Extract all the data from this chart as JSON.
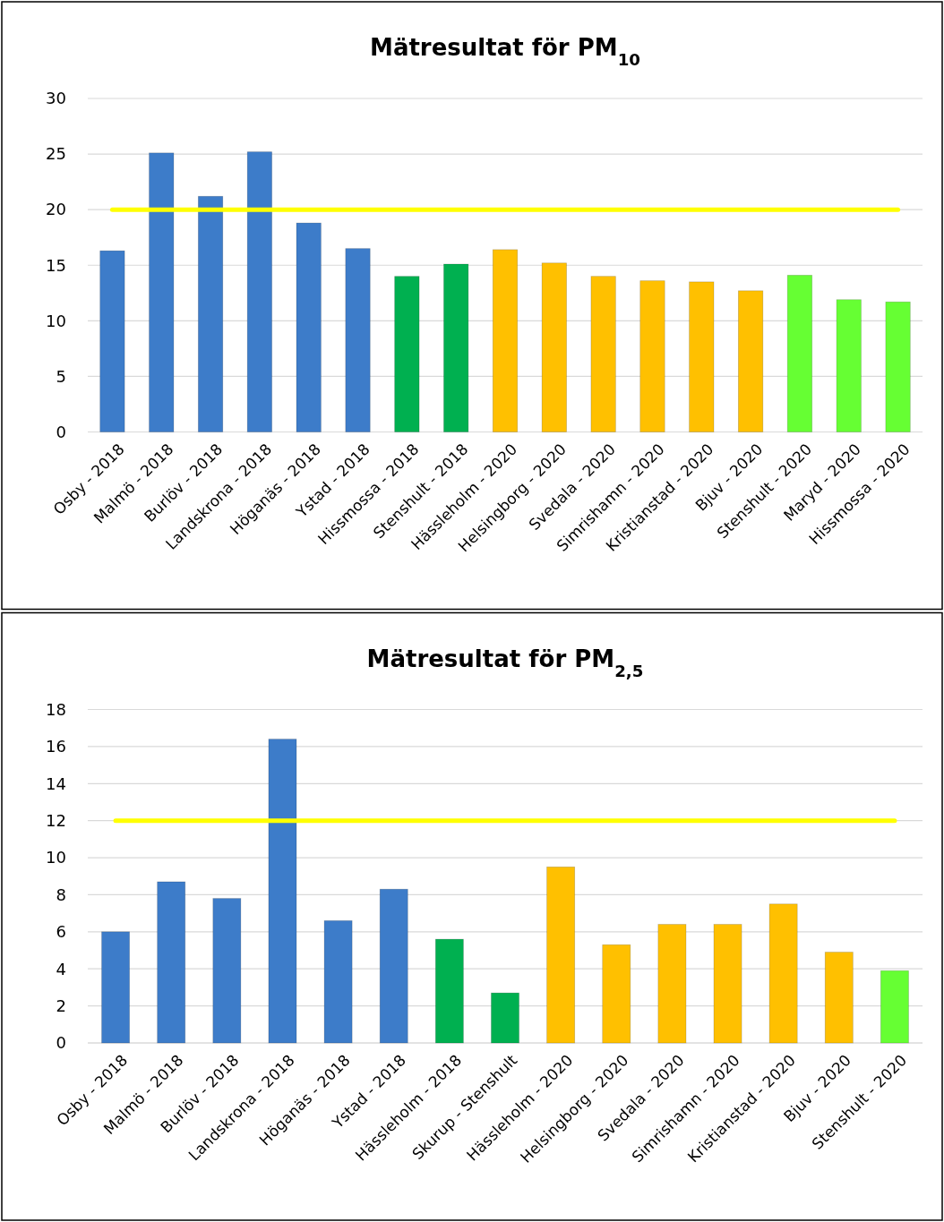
{
  "chart_data": [
    {
      "type": "bar",
      "title": "Mätresultat för PM$_{10}$",
      "categories": [
        "Osby - 2018",
        "Malmö - 2018",
        "Burlöv - 2018",
        "Landskrona - 2018",
        "Höganäs - 2018",
        "Ystad - 2018",
        "Hissmossa - 2018",
        "Stenshult - 2018",
        "Hässleholm - 2020",
        "Helsingborg - 2020",
        "Svedala - 2020",
        "Simrishamn - 2020",
        "Kristianstad - 2020",
        "Bjuv - 2020",
        "Stenshult - 2020",
        "Maryd - 2020",
        "Hissmossa - 2020"
      ],
      "values": [
        16.3,
        25.1,
        21.2,
        25.2,
        18.8,
        16.5,
        14.0,
        15.1,
        16.4,
        15.2,
        14.0,
        13.6,
        13.5,
        12.7,
        14.1,
        11.9,
        11.7
      ],
      "colors": [
        "#3d7cc9",
        "#3d7cc9",
        "#3d7cc9",
        "#3d7cc9",
        "#3d7cc9",
        "#3d7cc9",
        "#00b050",
        "#00b050",
        "#ffc000",
        "#ffc000",
        "#ffc000",
        "#ffc000",
        "#ffc000",
        "#ffc000",
        "#66ff33",
        "#66ff33",
        "#66ff33"
      ],
      "ylim": [
        0,
        30
      ],
      "yticks": [
        0,
        5,
        10,
        15,
        20,
        25,
        30
      ],
      "grid": "y",
      "ref_lines": [
        {
          "axis": "y",
          "value": 20,
          "color": "#ffff00"
        }
      ]
    },
    {
      "type": "bar",
      "title": "Mätresultat för PM$_{2,5}$",
      "categories": [
        "Osby - 2018",
        "Malmö - 2018",
        "Burlöv - 2018",
        "Landskrona - 2018",
        "Höganäs - 2018",
        "Ystad - 2018",
        "Hässleholm - 2018",
        "Skurup - Stenshult",
        "Hässleholm - 2020",
        "Helsingborg - 2020",
        "Svedala - 2020",
        "Simrishamn - 2020",
        "Kristianstad - 2020",
        "Bjuv - 2020",
        "Stenshult - 2020"
      ],
      "values": [
        6.0,
        8.7,
        7.8,
        16.4,
        6.6,
        8.3,
        5.6,
        2.7,
        9.5,
        5.3,
        6.4,
        6.4,
        7.5,
        4.9,
        3.9
      ],
      "colors": [
        "#3d7cc9",
        "#3d7cc9",
        "#3d7cc9",
        "#3d7cc9",
        "#3d7cc9",
        "#3d7cc9",
        "#00b050",
        "#00b050",
        "#ffc000",
        "#ffc000",
        "#ffc000",
        "#ffc000",
        "#ffc000",
        "#ffc000",
        "#66ff33"
      ],
      "ylim": [
        0,
        18
      ],
      "yticks": [
        0,
        2,
        4,
        6,
        8,
        10,
        12,
        14,
        16,
        18
      ],
      "grid": "y",
      "ref_lines": [
        {
          "axis": "y",
          "value": 12,
          "color": "#ffff00"
        }
      ]
    }
  ]
}
